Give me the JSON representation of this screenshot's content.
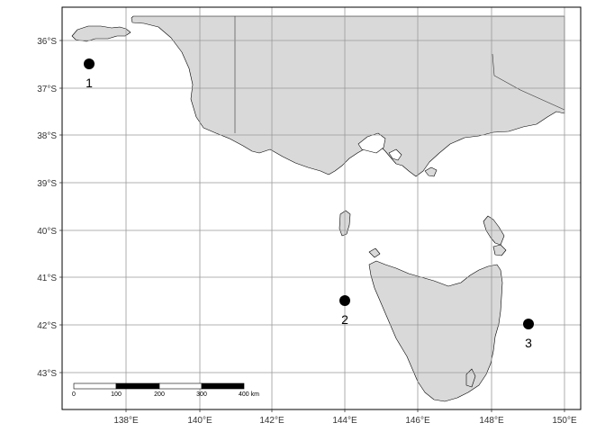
{
  "map": {
    "colors": {
      "land": "#d9d9d9",
      "coast": "#000000",
      "grid": "#999999",
      "sea": "#ffffff",
      "site": "#000000"
    },
    "y_ticks": [
      "36°S",
      "37°S",
      "38°S",
      "39°S",
      "40°S",
      "41°S",
      "42°S",
      "43°S"
    ],
    "x_ticks": [
      "138°E",
      "140°E",
      "142°E",
      "144°E",
      "146°E",
      "148°E",
      "150°E"
    ],
    "sites": [
      {
        "label": "1",
        "lon": 137.0,
        "lat": -36.5
      },
      {
        "label": "2",
        "lon": 144.0,
        "lat": -41.5
      },
      {
        "label": "3",
        "lon": 149.0,
        "lat": -42.0
      }
    ],
    "scale_bar": {
      "labels": [
        "0",
        "100",
        "200",
        "300",
        "400 km"
      ]
    }
  }
}
